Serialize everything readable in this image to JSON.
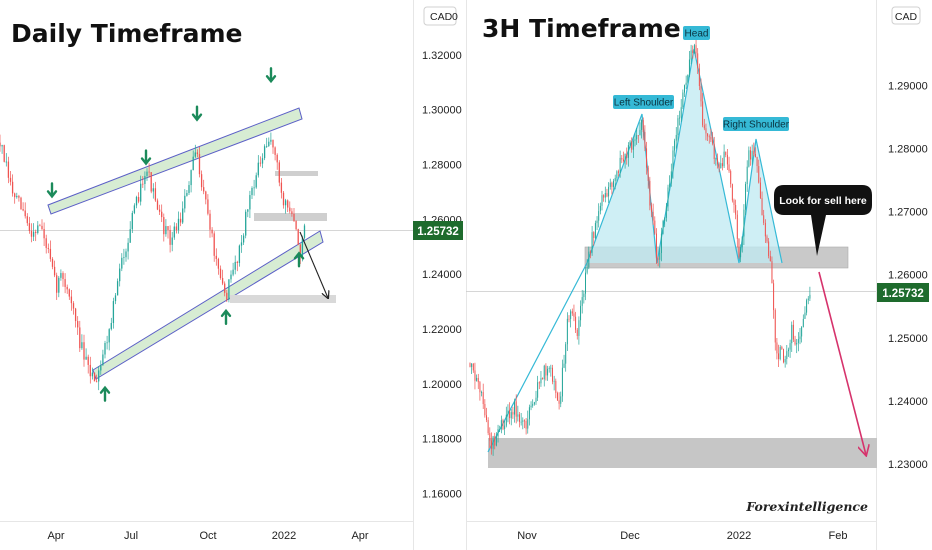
{
  "panels": {
    "left": {
      "title": "Daily Timeframe",
      "currency_badge": "CAD",
      "currency_digit": "0",
      "price_tag": "1.25732"
    },
    "right": {
      "title": "3H Timeframe",
      "currency_badge": "CAD",
      "price_tag": "1.25732",
      "callout": "Look for sell here",
      "pattern_labels": {
        "head": "Head",
        "left_shoulder": "Left Shoulder",
        "right_shoulder": "Right Shoulder"
      },
      "watermark": "Forexintelligence"
    }
  },
  "colors": {
    "bull": "#26a69a",
    "bear": "#ef5350",
    "channel": "#5b5fc7",
    "pattern": "#35b9d6",
    "price_tag": "#1e6b2d",
    "sell_arrow": "#d6336c"
  },
  "chart_data": [
    {
      "type": "candlestick",
      "title": "Daily Timeframe",
      "x_tick_labels": [
        "Apr",
        "Jul",
        "Oct",
        "2022",
        "Apr"
      ],
      "y_tick_labels": [
        "1.16000",
        "1.18000",
        "1.20000",
        "1.22000",
        "1.24000",
        "1.26000",
        "1.28000",
        "1.30000",
        "1.32000"
      ],
      "ylim": [
        1.15,
        1.34
      ],
      "current_price": 1.25732,
      "anchor_closes": [
        {
          "x": 0,
          "y": 1.288
        },
        {
          "x": 12,
          "y": 1.27
        },
        {
          "x": 24,
          "y": 1.262
        },
        {
          "x": 30,
          "y": 1.255
        },
        {
          "x": 40,
          "y": 1.258
        },
        {
          "x": 48,
          "y": 1.248
        },
        {
          "x": 56,
          "y": 1.235
        },
        {
          "x": 62,
          "y": 1.24
        },
        {
          "x": 70,
          "y": 1.232
        },
        {
          "x": 80,
          "y": 1.215
        },
        {
          "x": 88,
          "y": 1.205
        },
        {
          "x": 96,
          "y": 1.202
        },
        {
          "x": 108,
          "y": 1.218
        },
        {
          "x": 122,
          "y": 1.245
        },
        {
          "x": 138,
          "y": 1.268
        },
        {
          "x": 146,
          "y": 1.28
        },
        {
          "x": 158,
          "y": 1.262
        },
        {
          "x": 170,
          "y": 1.252
        },
        {
          "x": 182,
          "y": 1.262
        },
        {
          "x": 196,
          "y": 1.285
        },
        {
          "x": 208,
          "y": 1.262
        },
        {
          "x": 218,
          "y": 1.24
        },
        {
          "x": 226,
          "y": 1.232
        },
        {
          "x": 240,
          "y": 1.25
        },
        {
          "x": 252,
          "y": 1.272
        },
        {
          "x": 262,
          "y": 1.282
        },
        {
          "x": 272,
          "y": 1.29
        },
        {
          "x": 282,
          "y": 1.268
        },
        {
          "x": 292,
          "y": 1.262
        },
        {
          "x": 300,
          "y": 1.248
        },
        {
          "x": 306,
          "y": 1.258
        }
      ],
      "annotations": {
        "upper_channel": [
          [
            48,
            1.264
          ],
          [
            301,
            1.308
          ]
        ],
        "lower_channel": [
          [
            94,
            1.201
          ],
          [
            322,
            1.252
          ]
        ],
        "resistance_zones": [
          [
            275,
            1.279,
            43
          ],
          [
            254,
            1.2625,
            73
          ]
        ],
        "support_zone": [
          230,
          1.2305,
          106
        ],
        "projection": [
          [
            300,
            1.258
          ],
          [
            328,
            1.231
          ]
        ],
        "down_arrows_at": [
          [
            52,
            1.268
          ],
          [
            146,
            1.28
          ],
          [
            197,
            1.296
          ],
          [
            271,
            1.31
          ]
        ],
        "up_arrows_at": [
          [
            105,
            1.199
          ],
          [
            226,
            1.227
          ],
          [
            299,
            1.248
          ]
        ]
      }
    },
    {
      "type": "candlestick",
      "title": "3H Timeframe",
      "x_tick_labels": [
        "Nov",
        "Dec",
        "2022",
        "Feb"
      ],
      "y_tick_labels": [
        "1.23000",
        "1.24000",
        "1.25000",
        "1.26000",
        "1.27000",
        "1.28000",
        "1.29000"
      ],
      "ylim": [
        1.221,
        1.3035
      ],
      "current_price": 1.25732,
      "anchor_closes": [
        {
          "x": 470,
          "y": 1.246
        },
        {
          "x": 482,
          "y": 1.24
        },
        {
          "x": 492,
          "y": 1.233
        },
        {
          "x": 502,
          "y": 1.236
        },
        {
          "x": 514,
          "y": 1.239
        },
        {
          "x": 526,
          "y": 1.236
        },
        {
          "x": 540,
          "y": 1.244
        },
        {
          "x": 550,
          "y": 1.245
        },
        {
          "x": 560,
          "y": 1.24
        },
        {
          "x": 568,
          "y": 1.254
        },
        {
          "x": 578,
          "y": 1.251
        },
        {
          "x": 588,
          "y": 1.263
        },
        {
          "x": 600,
          "y": 1.271
        },
        {
          "x": 612,
          "y": 1.275
        },
        {
          "x": 622,
          "y": 1.278
        },
        {
          "x": 632,
          "y": 1.281
        },
        {
          "x": 642,
          "y": 1.284
        },
        {
          "x": 650,
          "y": 1.271
        },
        {
          "x": 658,
          "y": 1.262
        },
        {
          "x": 665,
          "y": 1.27
        },
        {
          "x": 672,
          "y": 1.278
        },
        {
          "x": 680,
          "y": 1.286
        },
        {
          "x": 688,
          "y": 1.293
        },
        {
          "x": 695,
          "y": 1.296
        },
        {
          "x": 702,
          "y": 1.285
        },
        {
          "x": 710,
          "y": 1.281
        },
        {
          "x": 718,
          "y": 1.277
        },
        {
          "x": 726,
          "y": 1.279
        },
        {
          "x": 734,
          "y": 1.271
        },
        {
          "x": 740,
          "y": 1.262
        },
        {
          "x": 748,
          "y": 1.279
        },
        {
          "x": 756,
          "y": 1.278
        },
        {
          "x": 764,
          "y": 1.268
        },
        {
          "x": 770,
          "y": 1.263
        },
        {
          "x": 776,
          "y": 1.248
        },
        {
          "x": 784,
          "y": 1.247
        },
        {
          "x": 792,
          "y": 1.251
        },
        {
          "x": 798,
          "y": 1.249
        },
        {
          "x": 804,
          "y": 1.254
        },
        {
          "x": 810,
          "y": 1.258
        }
      ],
      "annotations": {
        "head_and_shoulders": [
          [
            587,
            1.261
          ],
          [
            642,
            1.285
          ],
          [
            657,
            1.261
          ],
          [
            694,
            1.297
          ],
          [
            739,
            1.261
          ],
          [
            756,
            1.282
          ],
          [
            782,
            1.261
          ]
        ],
        "sell_zone": [
          585,
          1.2625,
          263
        ],
        "target_zone": [
          488,
          1.2315,
          389
        ],
        "sell_arrow": [
          [
            819,
            1.26
          ],
          [
            867,
            1.2297
          ]
        ]
      }
    }
  ]
}
